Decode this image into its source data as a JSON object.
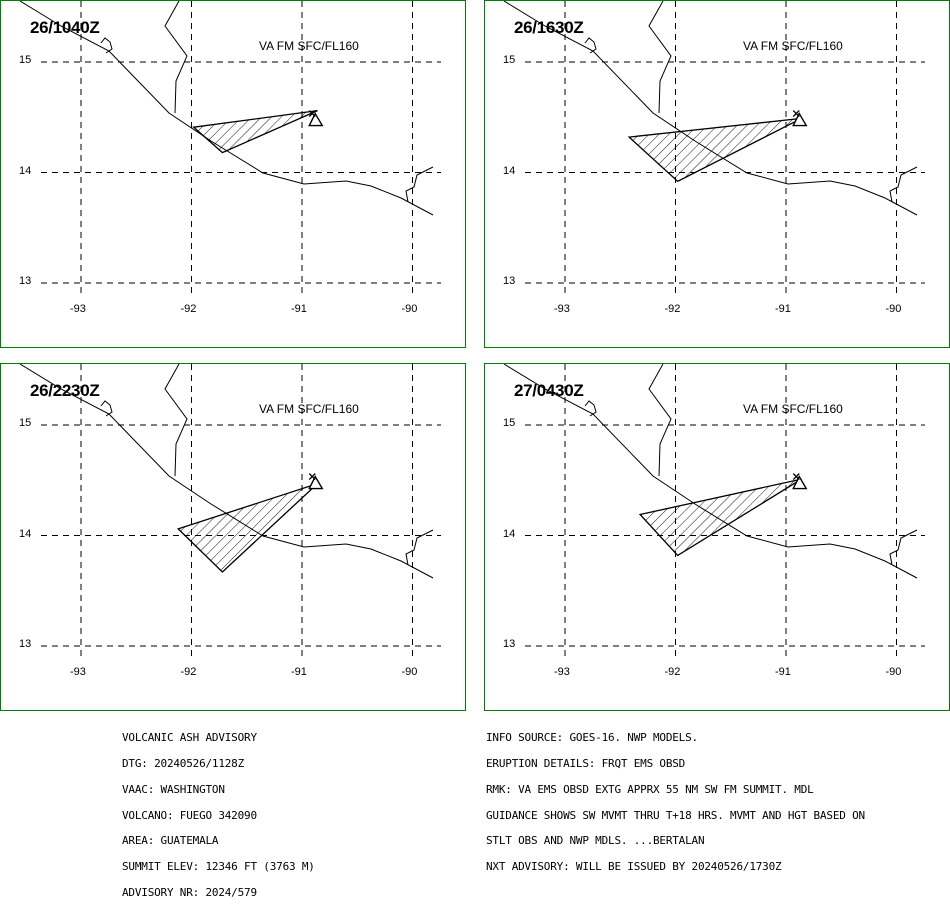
{
  "panels": [
    {
      "timestamp": "26/1040Z",
      "level": "VA FM SFC/FL160",
      "ash_polygon": [
        [
          -91.98,
          14.41
        ],
        [
          -90.86,
          14.56
        ],
        [
          -91.72,
          14.18
        ]
      ]
    },
    {
      "timestamp": "26/1630Z",
      "level": "VA FM SFC/FL160",
      "ash_polygon": [
        [
          -92.42,
          14.32
        ],
        [
          -90.86,
          14.49
        ],
        [
          -91.98,
          13.92
        ]
      ]
    },
    {
      "timestamp": "26/2230Z",
      "level": "VA FM SFC/FL160",
      "ash_polygon": [
        [
          -92.12,
          14.06
        ],
        [
          -90.86,
          14.47
        ],
        [
          -91.72,
          13.67
        ]
      ]
    },
    {
      "timestamp": "27/0430Z",
      "level": "VA FM SFC/FL160",
      "ash_polygon": [
        [
          -92.32,
          14.19
        ],
        [
          -90.86,
          14.51
        ],
        [
          -91.98,
          13.82
        ]
      ]
    }
  ],
  "axes": {
    "lat_ticks": [
      "15",
      "14",
      "13"
    ],
    "lon_ticks": [
      "-93",
      "-92",
      "-91",
      "-90"
    ]
  },
  "volcano": {
    "lon": -90.88,
    "lat": 14.47,
    "symbol": "triangle-with-x"
  },
  "advisory_left": [
    "VOLCANIC ASH ADVISORY",
    "DTG: 20240526/1128Z",
    "VAAC: WASHINGTON",
    "VOLCANO: FUEGO 342090",
    "AREA: GUATEMALA",
    "SUMMIT ELEV: 12346 FT (3763 M)",
    "ADVISORY NR: 2024/579"
  ],
  "advisory_right": [
    "INFO SOURCE: GOES-16. NWP MODELS.",
    "ERUPTION DETAILS: FRQT EMS OBSD",
    "RMK: VA EMS OBSD EXTG APPRX 55 NM SW FM SUMMIT. MDL",
    "GUIDANCE SHOWS SW MVMT THRU T+18 HRS. MVMT AND HGT BASED ON",
    "STLT OBS AND NWP MDLS. ...BERTALAN",
    "NXT ADVISORY: WILL BE ISSUED BY 20240526/1730Z"
  ],
  "colors": {
    "frame": "#008000",
    "lines": "#000000",
    "background": "#ffffff"
  }
}
